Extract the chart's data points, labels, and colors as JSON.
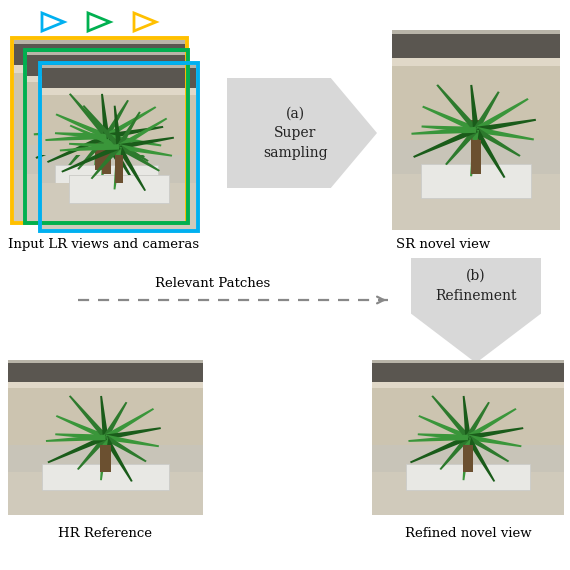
{
  "bg_color": "#ffffff",
  "arrow_color": "#d8d8d8",
  "arrow_text_a": "(a)\nSuper\nsampling",
  "arrow_text_b": "(b)\nRefinement",
  "label_lr": "Input LR views and cameras",
  "label_sr": "SR novel view",
  "label_hr": "HR Reference",
  "label_refined": "Refined novel view",
  "label_patches": "Relevant Patches",
  "triangle_colors": [
    "#00b0f0",
    "#00b050",
    "#ffc000"
  ],
  "frame_colors": [
    "#ffc000",
    "#00b050",
    "#00b0f0"
  ],
  "dashed_arrow_color": "#888888",
  "img_placeholder_colors": {
    "bg_top": "#c8c4b8",
    "bg_mid": "#b0a898",
    "floor": "#c0baa8",
    "planter": "#e0e0dc",
    "trunk": "#6b5030",
    "leaf_dark": "#1a5c1a",
    "leaf_mid": "#2d7a2d",
    "leaf_light": "#3a963a",
    "wall_shelf": "#7a7060"
  },
  "layout": {
    "fig_w": 5.7,
    "fig_h": 5.7,
    "dpi": 100
  }
}
